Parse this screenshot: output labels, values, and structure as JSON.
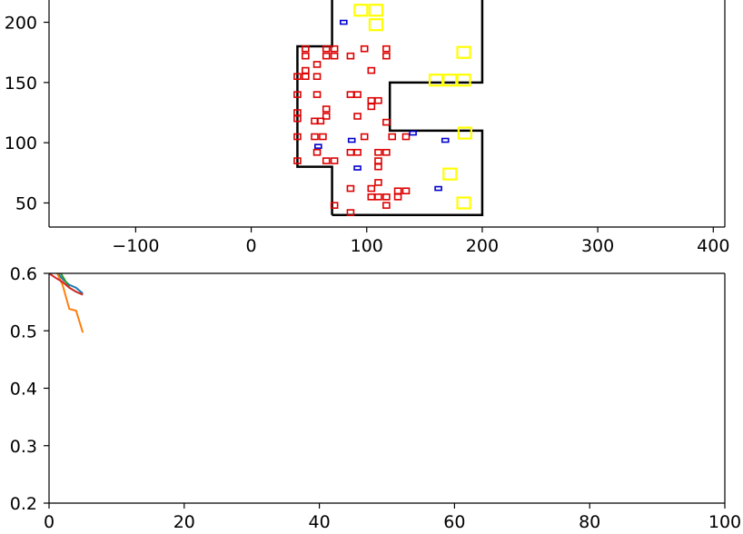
{
  "colors": {
    "wall": "#000000",
    "red_box": "#dd0000",
    "blue_box": "#0000cc",
    "yellow_box": "#ffff00",
    "series": [
      "#1f77b4",
      "#ff7f0e",
      "#2ca02c",
      "#d62728"
    ]
  },
  "chart_data": [
    {
      "type": "scatter",
      "title": "",
      "xlabel": "",
      "ylabel": "",
      "xlim": [
        -175,
        410
      ],
      "ylim": [
        30,
        220
      ],
      "xticks": [
        -100,
        0,
        100,
        200,
        300,
        400
      ],
      "xtick_labels": [
        "−100",
        "0",
        "100",
        "200",
        "300",
        "400"
      ],
      "yticks": [
        50,
        100,
        150,
        200
      ],
      "ytick_labels": [
        "50",
        "100",
        "150",
        "200"
      ],
      "grid": false,
      "outline": [
        [
          70,
          40
        ],
        [
          200,
          40
        ],
        [
          200,
          110
        ],
        [
          120,
          110
        ],
        [
          120,
          150
        ],
        [
          200,
          150
        ],
        [
          200,
          220
        ],
        [
          70,
          220
        ],
        [
          70,
          180
        ],
        [
          40,
          180
        ],
        [
          40,
          80
        ],
        [
          70,
          80
        ],
        [
          70,
          40
        ]
      ],
      "red_boxes": [
        [
          47,
          178
        ],
        [
          47,
          172
        ],
        [
          47,
          160
        ],
        [
          47,
          155
        ],
        [
          40,
          155
        ],
        [
          40,
          140
        ],
        [
          40,
          125
        ],
        [
          40,
          120
        ],
        [
          40,
          105
        ],
        [
          40,
          85
        ],
        [
          57,
          165
        ],
        [
          57,
          155
        ],
        [
          57,
          140
        ],
        [
          55,
          118
        ],
        [
          60,
          118
        ],
        [
          55,
          105
        ],
        [
          62,
          105
        ],
        [
          57,
          92
        ],
        [
          65,
          128
        ],
        [
          65,
          122
        ],
        [
          65,
          85
        ],
        [
          72,
          85
        ],
        [
          65,
          178
        ],
        [
          72,
          178
        ],
        [
          65,
          172
        ],
        [
          72,
          172
        ],
        [
          86,
          172
        ],
        [
          98,
          178
        ],
        [
          104,
          160
        ],
        [
          117,
          178
        ],
        [
          117,
          172
        ],
        [
          86,
          140
        ],
        [
          92,
          140
        ],
        [
          92,
          122
        ],
        [
          104,
          135
        ],
        [
          110,
          135
        ],
        [
          104,
          130
        ],
        [
          117,
          117
        ],
        [
          98,
          105
        ],
        [
          122,
          105
        ],
        [
          134,
          105
        ],
        [
          86,
          92
        ],
        [
          92,
          92
        ],
        [
          110,
          92
        ],
        [
          117,
          92
        ],
        [
          110,
          85
        ],
        [
          110,
          80
        ],
        [
          110,
          67
        ],
        [
          86,
          62
        ],
        [
          104,
          62
        ],
        [
          104,
          55
        ],
        [
          110,
          55
        ],
        [
          117,
          55
        ],
        [
          127,
          60
        ],
        [
          134,
          60
        ],
        [
          127,
          55
        ],
        [
          117,
          48
        ],
        [
          72,
          48
        ],
        [
          86,
          42
        ]
      ],
      "blue_boxes": [
        [
          80,
          200
        ],
        [
          87,
          102
        ],
        [
          92,
          79
        ],
        [
          58,
          97
        ],
        [
          140,
          108
        ],
        [
          168,
          102
        ],
        [
          162,
          62
        ]
      ],
      "yellow_boxes": [
        [
          95,
          210
        ],
        [
          108,
          210
        ],
        [
          108,
          198
        ],
        [
          184,
          175
        ],
        [
          160,
          152
        ],
        [
          172,
          152
        ],
        [
          184,
          152
        ],
        [
          185,
          108
        ],
        [
          172,
          74
        ],
        [
          184,
          50
        ]
      ]
    },
    {
      "type": "line",
      "title": "",
      "xlabel": "",
      "ylabel": "",
      "xlim": [
        0,
        100
      ],
      "ylim": [
        0.2,
        0.6
      ],
      "xticks": [
        0,
        20,
        40,
        60,
        80,
        100
      ],
      "xtick_labels": [
        "0",
        "20",
        "40",
        "60",
        "80",
        "100"
      ],
      "yticks": [
        0.2,
        0.3,
        0.4,
        0.5,
        0.6
      ],
      "ytick_labels": [
        "0.2",
        "0.3",
        "0.4",
        "0.5",
        "0.6"
      ],
      "grid": false,
      "series": [
        {
          "x": [
            0,
            1,
            2,
            3,
            4,
            5
          ],
          "y": [
            0.63,
            0.605,
            0.59,
            0.58,
            0.575,
            0.565
          ]
        },
        {
          "x": [
            0,
            1,
            2,
            3,
            4,
            5
          ],
          "y": [
            0.63,
            0.605,
            0.58,
            0.538,
            0.535,
            0.497
          ]
        },
        {
          "x": [
            0,
            1,
            2,
            3,
            4,
            5
          ],
          "y": [
            0.64,
            0.615,
            0.595,
            0.575,
            0.568,
            0.563
          ]
        },
        {
          "x": [
            0,
            1,
            2,
            3,
            4,
            5
          ],
          "y": [
            0.6,
            0.592,
            0.585,
            0.575,
            0.568,
            0.563
          ]
        }
      ]
    }
  ]
}
